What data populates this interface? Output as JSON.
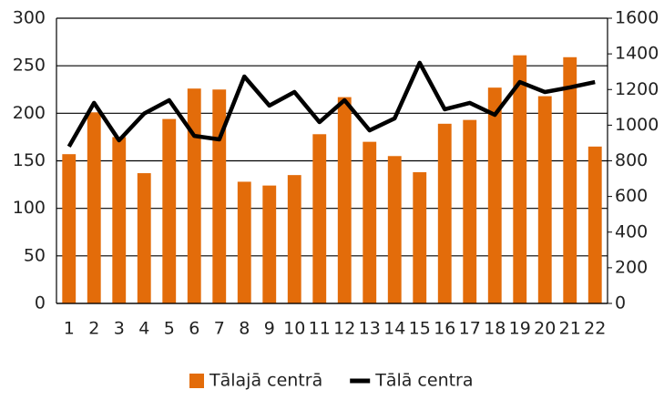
{
  "chart_data": {
    "type": "bar_line",
    "categories": [
      "1",
      "2",
      "3",
      "4",
      "5",
      "6",
      "7",
      "8",
      "9",
      "10",
      "11",
      "12",
      "13",
      "14",
      "15",
      "16",
      "17",
      "18",
      "19",
      "20",
      "21",
      "22"
    ],
    "series": [
      {
        "name": "Tālajā centrā",
        "color": "#e36c0a",
        "type": "bar",
        "values": [
          157,
          201,
          175,
          137,
          194,
          226,
          225,
          128,
          124,
          135,
          178,
          217,
          170,
          155,
          138,
          189,
          193,
          227,
          261,
          218,
          259,
          165
        ]
      },
      {
        "name": "Tālā centra",
        "color": "#000000",
        "type": "line",
        "axis": "y2",
        "values": [
          880,
          1125,
          915,
          1065,
          1140,
          940,
          920,
          1273,
          1110,
          1186,
          1017,
          1140,
          971,
          1038,
          1350,
          1089,
          1125,
          1058,
          1242,
          1186,
          1212,
          1242
        ]
      }
    ],
    "ylim": [
      0,
      300
    ],
    "yticks": [
      0,
      50,
      100,
      150,
      200,
      250,
      300
    ],
    "y2lim": [
      0,
      1600
    ],
    "y2ticks": [
      0,
      200,
      400,
      600,
      800,
      1000,
      1200,
      1400,
      1600
    ],
    "grid": true,
    "legend": "bottom"
  }
}
